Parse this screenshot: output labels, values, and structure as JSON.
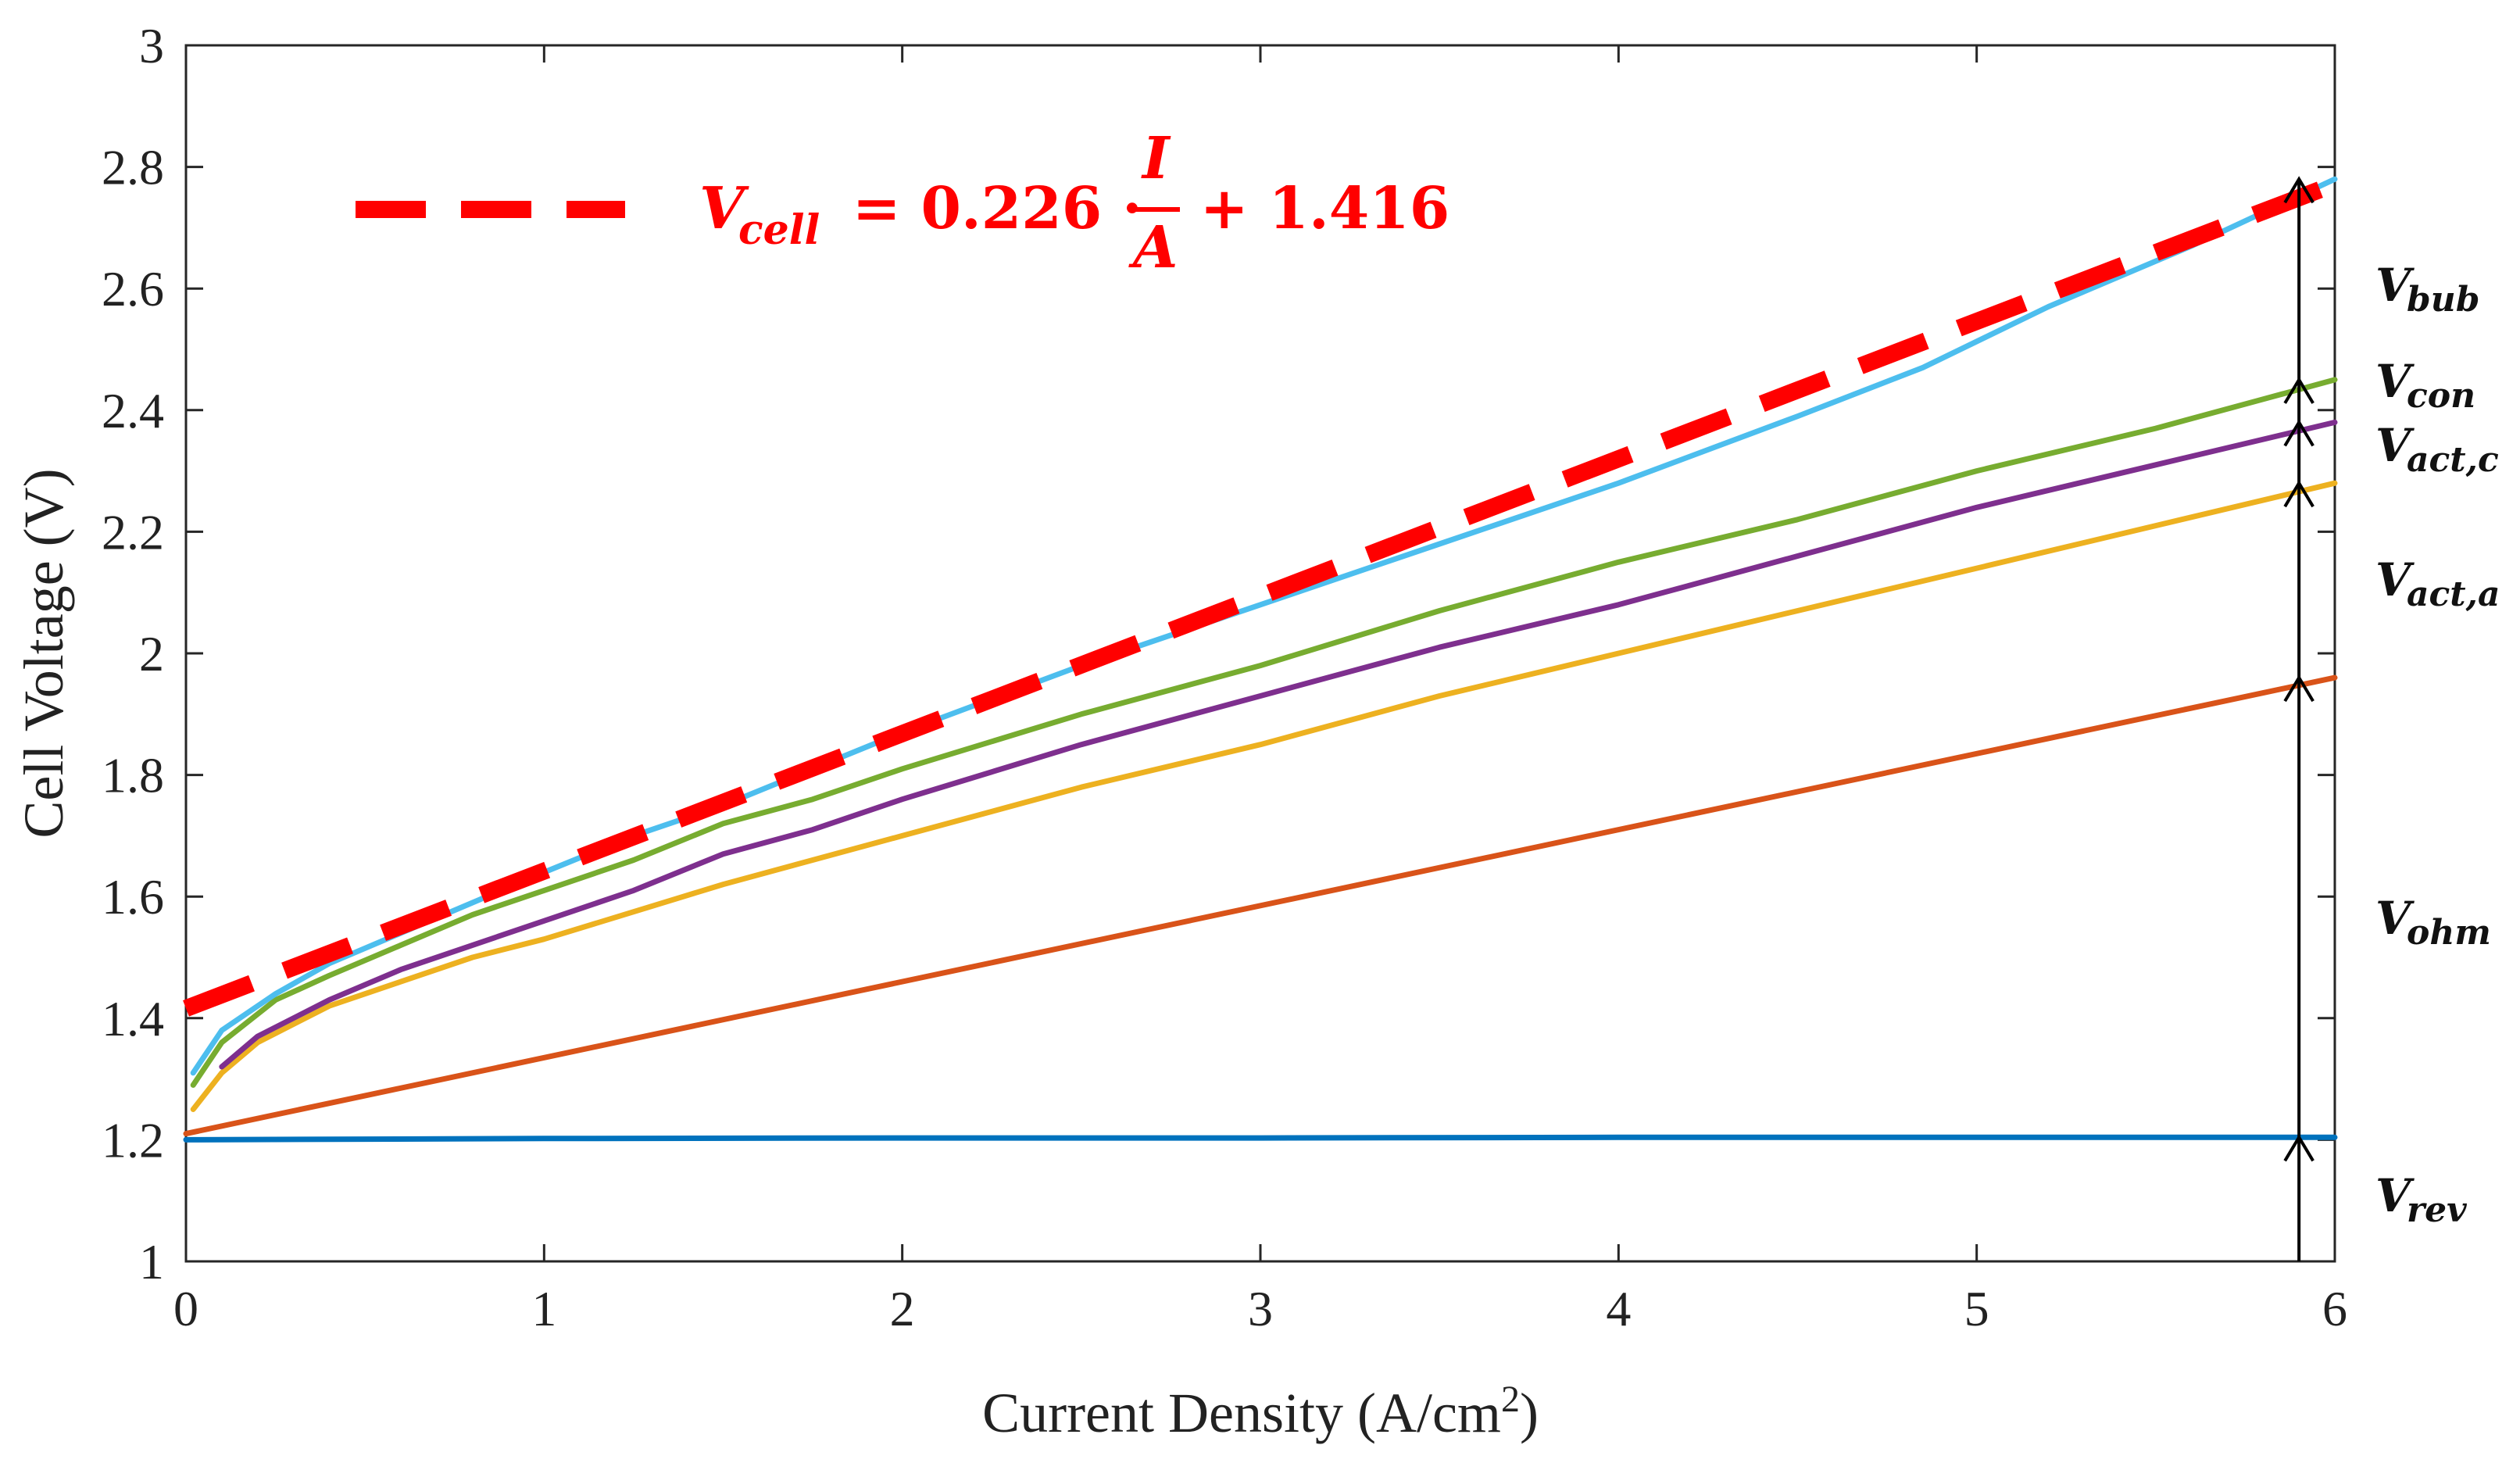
{
  "chart_data": {
    "type": "line",
    "title": "",
    "xlabel": "Current Density (A/cm",
    "xlabel_sup": "2",
    "xlabel_tail": ")",
    "ylabel": "Cell Voltage (V)",
    "xlim": [
      0,
      6
    ],
    "ylim": [
      1,
      3
    ],
    "xticks": [
      0,
      1,
      2,
      3,
      4,
      5,
      6
    ],
    "yticks": [
      1,
      1.2,
      1.4,
      1.6,
      1.8,
      2,
      2.2,
      2.4,
      2.6,
      2.8,
      3
    ],
    "xtick_labels": [
      "0",
      "1",
      "2",
      "3",
      "4",
      "5",
      "6"
    ],
    "ytick_labels": [
      "1",
      "1.2",
      "1.4",
      "1.6",
      "1.8",
      "2",
      "2.2",
      "2.4",
      "2.6",
      "2.8",
      "3"
    ],
    "grid": false,
    "series": [
      {
        "name": "V_rev",
        "color": "#0072bd",
        "x": [
          0,
          1,
          2,
          3,
          4,
          5,
          6
        ],
        "y": [
          1.2,
          1.202,
          1.203,
          1.203,
          1.204,
          1.204,
          1.204
        ]
      },
      {
        "name": "V_ohm",
        "color": "#d95319",
        "x": [
          0,
          6
        ],
        "y": [
          1.21,
          1.96
        ]
      },
      {
        "name": "V_act,a",
        "color": "#edb120",
        "x": [
          0.02,
          0.1,
          0.2,
          0.4,
          0.6,
          0.8,
          1.0,
          1.5,
          2.0,
          2.5,
          3.0,
          3.5,
          4.0,
          4.5,
          5.0,
          5.5,
          6.0
        ],
        "y": [
          1.25,
          1.31,
          1.36,
          1.42,
          1.46,
          1.5,
          1.53,
          1.62,
          1.7,
          1.78,
          1.85,
          1.93,
          2.0,
          2.07,
          2.14,
          2.21,
          2.28
        ]
      },
      {
        "name": "V_act,c",
        "color": "#7e2f8e",
        "x": [
          0.1,
          0.2,
          0.4,
          0.6,
          0.8,
          1.0,
          1.25,
          1.5,
          1.75,
          2.0,
          2.5,
          3.0,
          3.5,
          4.0,
          4.5,
          5.0,
          5.5,
          6.0
        ],
        "y": [
          1.32,
          1.37,
          1.43,
          1.48,
          1.52,
          1.56,
          1.61,
          1.67,
          1.71,
          1.76,
          1.85,
          1.93,
          2.01,
          2.08,
          2.16,
          2.24,
          2.31,
          2.38
        ]
      },
      {
        "name": "V_con",
        "color": "#77ac30",
        "x": [
          0.02,
          0.1,
          0.25,
          0.4,
          0.6,
          0.8,
          1.0,
          1.25,
          1.5,
          1.75,
          2.0,
          2.5,
          3.0,
          3.5,
          4.0,
          4.5,
          5.0,
          5.5,
          6.0
        ],
        "y": [
          1.29,
          1.36,
          1.43,
          1.47,
          1.52,
          1.57,
          1.61,
          1.66,
          1.72,
          1.76,
          1.81,
          1.9,
          1.98,
          2.07,
          2.15,
          2.22,
          2.3,
          2.37,
          2.45
        ]
      },
      {
        "name": "V_bub",
        "color": "#4dbeee",
        "x": [
          0.02,
          0.1,
          0.25,
          0.4,
          0.6,
          0.8,
          1.0,
          1.25,
          1.5,
          1.75,
          2.0,
          2.5,
          3.0,
          3.5,
          4.0,
          4.5,
          4.85,
          5.2,
          5.6,
          6.0
        ],
        "y": [
          1.31,
          1.38,
          1.44,
          1.49,
          1.54,
          1.59,
          1.64,
          1.7,
          1.75,
          1.81,
          1.87,
          1.98,
          2.08,
          2.18,
          2.28,
          2.39,
          2.47,
          2.57,
          2.67,
          2.78
        ]
      },
      {
        "name": "V_cell fit",
        "color": "#ff0000",
        "dashed": true,
        "x": [
          0,
          6
        ],
        "y": [
          1.416,
          2.772
        ]
      }
    ],
    "equation": {
      "lhs": "V",
      "lhs_sub": "cell",
      "middle": " = 0.226 · ",
      "numerator": "I",
      "denominator": "A",
      "rhs": " + 1.416"
    },
    "component_labels": [
      {
        "main": "V",
        "sub": "bub"
      },
      {
        "main": "V",
        "sub": "con"
      },
      {
        "main": "V",
        "sub": "act,c"
      },
      {
        "main": "V",
        "sub": "act,a"
      },
      {
        "main": "V",
        "sub": "ohm"
      },
      {
        "main": "V",
        "sub": "rev"
      }
    ],
    "arrow_x": 5.9,
    "arrow_levels": [
      1.0,
      1.204,
      1.96,
      2.28,
      2.38,
      2.45,
      2.78
    ]
  }
}
